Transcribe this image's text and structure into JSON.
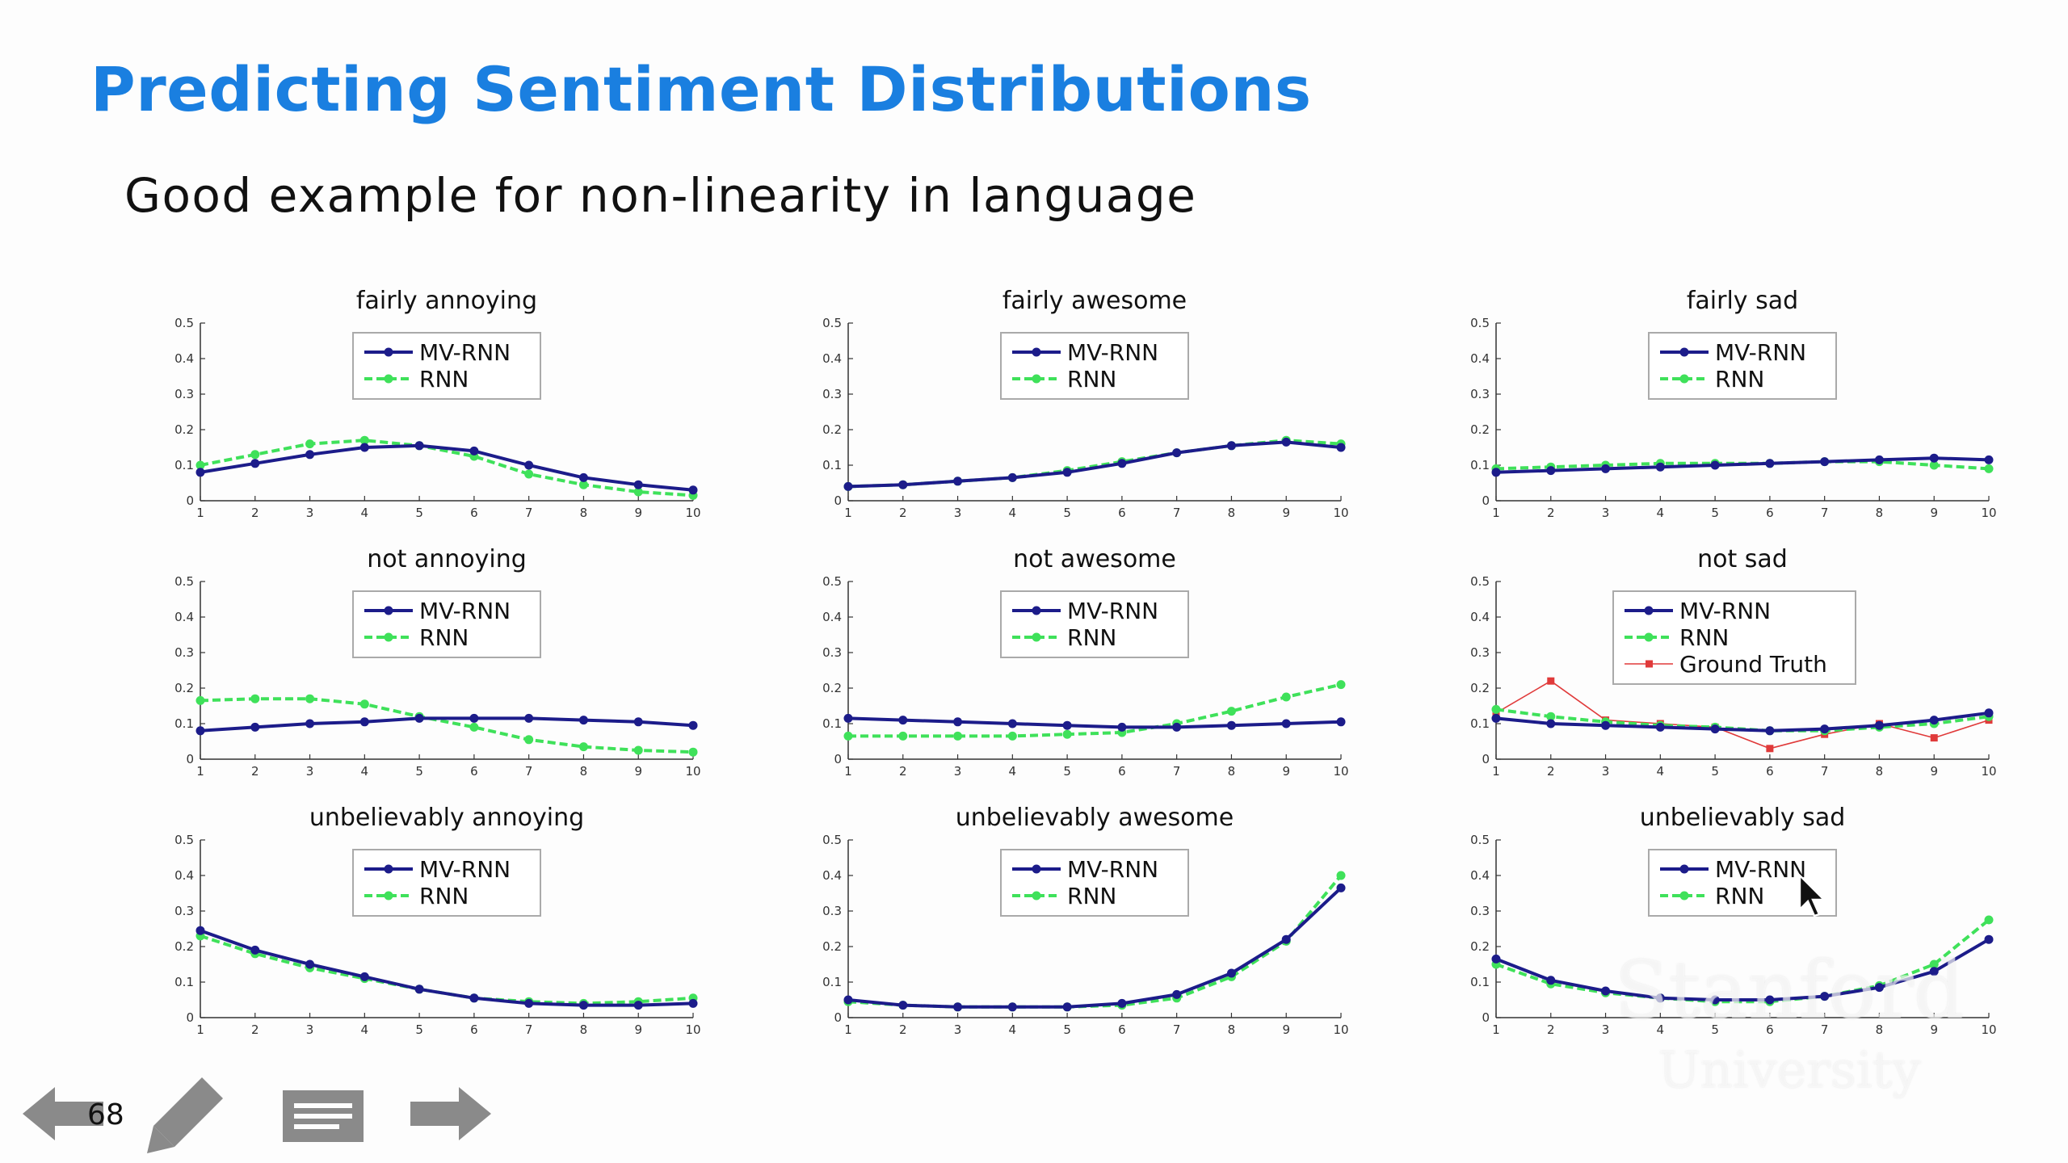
{
  "slide": {
    "title": "Predicting Sentiment Distributions",
    "subtitle": "Good example for non-linearity in language",
    "page_number": "68"
  },
  "watermark": {
    "line1": "Stanford",
    "line2": "University"
  },
  "nav": {
    "icons": [
      "arrow-left-icon",
      "pencil-icon",
      "notes-icon",
      "arrow-right-icon"
    ]
  },
  "colors": {
    "title": "#1a7fe0",
    "mv_rnn": "#1c1c8a",
    "rnn": "#3fe15a",
    "ground_truth": "#e03a3a"
  },
  "chart_data": [
    {
      "type": "line",
      "title": "fairly annoying",
      "x": [
        1,
        2,
        3,
        4,
        5,
        6,
        7,
        8,
        9,
        10
      ],
      "ylim": [
        0,
        0.5
      ],
      "yticks": [
        "0",
        "0.1",
        "0.2",
        "0.3",
        "0.4",
        "0.5"
      ],
      "legend": "top-center",
      "series": [
        {
          "name": "MV-RNN",
          "values": [
            0.08,
            0.105,
            0.13,
            0.15,
            0.155,
            0.14,
            0.1,
            0.065,
            0.045,
            0.03
          ]
        },
        {
          "name": "RNN",
          "values": [
            0.1,
            0.13,
            0.16,
            0.17,
            0.155,
            0.125,
            0.075,
            0.045,
            0.025,
            0.015
          ]
        }
      ]
    },
    {
      "type": "line",
      "title": "fairly awesome",
      "x": [
        1,
        2,
        3,
        4,
        5,
        6,
        7,
        8,
        9,
        10
      ],
      "ylim": [
        0,
        0.5
      ],
      "yticks": [
        "0",
        "0.1",
        "0.2",
        "0.3",
        "0.4",
        "0.5"
      ],
      "legend": "top-center",
      "series": [
        {
          "name": "MV-RNN",
          "values": [
            0.04,
            0.045,
            0.055,
            0.065,
            0.08,
            0.105,
            0.135,
            0.155,
            0.165,
            0.15
          ]
        },
        {
          "name": "RNN",
          "values": [
            0.04,
            0.045,
            0.055,
            0.065,
            0.085,
            0.11,
            0.135,
            0.155,
            0.17,
            0.16
          ]
        }
      ]
    },
    {
      "type": "line",
      "title": "fairly sad",
      "x": [
        1,
        2,
        3,
        4,
        5,
        6,
        7,
        8,
        9,
        10
      ],
      "ylim": [
        0,
        0.5
      ],
      "yticks": [
        "0",
        "0.1",
        "0.2",
        "0.3",
        "0.4",
        "0.5"
      ],
      "legend": "top-center",
      "series": [
        {
          "name": "MV-RNN",
          "values": [
            0.08,
            0.085,
            0.09,
            0.095,
            0.1,
            0.105,
            0.11,
            0.115,
            0.12,
            0.115
          ]
        },
        {
          "name": "RNN",
          "values": [
            0.09,
            0.095,
            0.1,
            0.105,
            0.105,
            0.105,
            0.11,
            0.11,
            0.1,
            0.09
          ]
        }
      ]
    },
    {
      "type": "line",
      "title": "not annoying",
      "x": [
        1,
        2,
        3,
        4,
        5,
        6,
        7,
        8,
        9,
        10
      ],
      "ylim": [
        0,
        0.5
      ],
      "yticks": [
        "0",
        "0.1",
        "0.2",
        "0.3",
        "0.4",
        "0.5"
      ],
      "legend": "top-center",
      "series": [
        {
          "name": "MV-RNN",
          "values": [
            0.08,
            0.09,
            0.1,
            0.105,
            0.115,
            0.115,
            0.115,
            0.11,
            0.105,
            0.095
          ]
        },
        {
          "name": "RNN",
          "values": [
            0.165,
            0.17,
            0.17,
            0.155,
            0.12,
            0.09,
            0.055,
            0.035,
            0.025,
            0.02
          ]
        }
      ]
    },
    {
      "type": "line",
      "title": "not awesome",
      "x": [
        1,
        2,
        3,
        4,
        5,
        6,
        7,
        8,
        9,
        10
      ],
      "ylim": [
        0,
        0.5
      ],
      "yticks": [
        "0",
        "0.1",
        "0.2",
        "0.3",
        "0.4",
        "0.5"
      ],
      "legend": "top-center",
      "series": [
        {
          "name": "MV-RNN",
          "values": [
            0.115,
            0.11,
            0.105,
            0.1,
            0.095,
            0.09,
            0.09,
            0.095,
            0.1,
            0.105
          ]
        },
        {
          "name": "RNN",
          "values": [
            0.065,
            0.065,
            0.065,
            0.065,
            0.07,
            0.075,
            0.1,
            0.135,
            0.175,
            0.21
          ]
        }
      ]
    },
    {
      "type": "line",
      "title": "not sad",
      "x": [
        1,
        2,
        3,
        4,
        5,
        6,
        7,
        8,
        9,
        10
      ],
      "ylim": [
        0,
        0.5
      ],
      "yticks": [
        "0",
        "0.1",
        "0.2",
        "0.3",
        "0.4",
        "0.5"
      ],
      "legend": "top-center",
      "series": [
        {
          "name": "MV-RNN",
          "values": [
            0.115,
            0.1,
            0.095,
            0.09,
            0.085,
            0.08,
            0.085,
            0.095,
            0.11,
            0.13
          ]
        },
        {
          "name": "RNN",
          "values": [
            0.14,
            0.12,
            0.105,
            0.095,
            0.09,
            0.08,
            0.08,
            0.09,
            0.1,
            0.12
          ]
        },
        {
          "name": "Ground Truth",
          "values": [
            0.13,
            0.22,
            0.11,
            0.1,
            0.09,
            0.03,
            0.07,
            0.1,
            0.06,
            0.11
          ]
        }
      ]
    },
    {
      "type": "line",
      "title": "unbelievably annoying",
      "x": [
        1,
        2,
        3,
        4,
        5,
        6,
        7,
        8,
        9,
        10
      ],
      "ylim": [
        0,
        0.5
      ],
      "yticks": [
        "0",
        "0.1",
        "0.2",
        "0.3",
        "0.4",
        "0.5"
      ],
      "legend": "top-center",
      "series": [
        {
          "name": "MV-RNN",
          "values": [
            0.245,
            0.19,
            0.15,
            0.115,
            0.08,
            0.055,
            0.04,
            0.035,
            0.035,
            0.04
          ]
        },
        {
          "name": "RNN",
          "values": [
            0.23,
            0.18,
            0.14,
            0.11,
            0.08,
            0.055,
            0.045,
            0.04,
            0.045,
            0.055
          ]
        }
      ]
    },
    {
      "type": "line",
      "title": "unbelievably awesome",
      "x": [
        1,
        2,
        3,
        4,
        5,
        6,
        7,
        8,
        9,
        10
      ],
      "ylim": [
        0,
        0.5
      ],
      "yticks": [
        "0",
        "0.1",
        "0.2",
        "0.3",
        "0.4",
        "0.5"
      ],
      "legend": "top-center",
      "series": [
        {
          "name": "MV-RNN",
          "values": [
            0.05,
            0.035,
            0.03,
            0.03,
            0.03,
            0.04,
            0.065,
            0.125,
            0.22,
            0.365
          ]
        },
        {
          "name": "RNN",
          "values": [
            0.045,
            0.035,
            0.03,
            0.03,
            0.03,
            0.035,
            0.055,
            0.115,
            0.215,
            0.4
          ]
        }
      ]
    },
    {
      "type": "line",
      "title": "unbelievably sad",
      "x": [
        1,
        2,
        3,
        4,
        5,
        6,
        7,
        8,
        9,
        10
      ],
      "ylim": [
        0,
        0.5
      ],
      "yticks": [
        "0",
        "0.1",
        "0.2",
        "0.3",
        "0.4",
        "0.5"
      ],
      "legend": "top-center",
      "series": [
        {
          "name": "MV-RNN",
          "values": [
            0.165,
            0.105,
            0.075,
            0.055,
            0.05,
            0.05,
            0.06,
            0.085,
            0.13,
            0.22
          ]
        },
        {
          "name": "RNN",
          "values": [
            0.15,
            0.095,
            0.07,
            0.055,
            0.045,
            0.045,
            0.06,
            0.09,
            0.15,
            0.275
          ]
        }
      ]
    }
  ]
}
